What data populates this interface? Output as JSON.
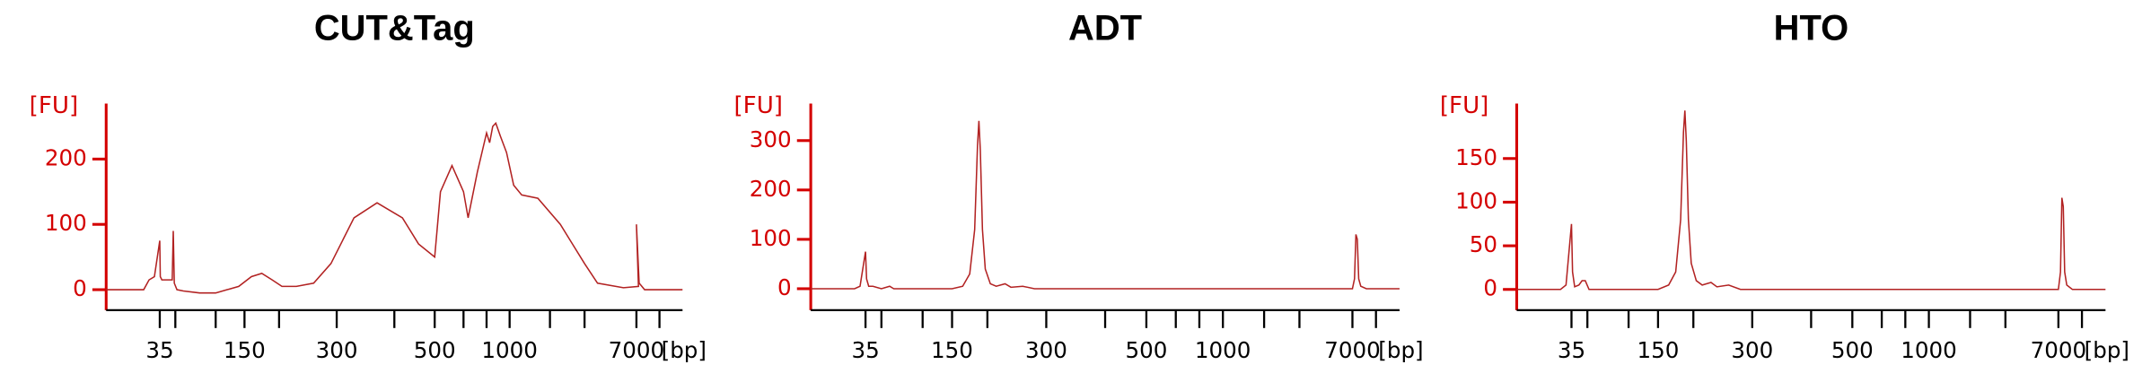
{
  "chart_data": [
    {
      "type": "line",
      "title": "CUT&Tag",
      "y_label": "[FU]",
      "x_label": "[bp]",
      "color": "#b22222",
      "axis_color": "#d40000",
      "xlim": [
        25,
        12000
      ],
      "xticks": [
        35,
        50,
        100,
        150,
        200,
        300,
        400,
        500,
        600,
        700,
        1000,
        2000,
        3000,
        7000,
        10380
      ],
      "xtick_labels": [
        "35",
        null,
        null,
        "150",
        null,
        "300",
        null,
        "500",
        null,
        null,
        "1000",
        null,
        null,
        "7000",
        null
      ],
      "ylim": [
        -25,
        285
      ],
      "yticks": [
        0,
        100,
        200
      ],
      "x": [
        25,
        32,
        33,
        34,
        35,
        35.5,
        37,
        47,
        48,
        49,
        52,
        60,
        80,
        100,
        120,
        140,
        160,
        175,
        190,
        205,
        230,
        260,
        290,
        330,
        370,
        420,
        460,
        500,
        520,
        560,
        600,
        620,
        660,
        700,
        740,
        780,
        820,
        880,
        960,
        1100,
        1300,
        1700,
        2300,
        3000,
        4000,
        6000,
        7300,
        7000,
        7400,
        8200,
        9000,
        12000
      ],
      "values": [
        0,
        0,
        15,
        20,
        75,
        20,
        15,
        15,
        90,
        10,
        0,
        -2,
        -5,
        -5,
        0,
        5,
        20,
        25,
        15,
        5,
        5,
        10,
        40,
        110,
        133,
        110,
        70,
        50,
        150,
        190,
        150,
        110,
        180,
        240,
        225,
        250,
        255,
        235,
        210,
        160,
        145,
        140,
        100,
        40,
        10,
        3,
        5,
        100,
        10,
        0,
        0,
        0
      ]
    },
    {
      "type": "line",
      "title": "ADT",
      "y_label": "[FU]",
      "x_label": "[bp]",
      "color": "#b22222",
      "axis_color": "#d40000",
      "xlim": [
        25,
        12000
      ],
      "xticks": [
        35,
        50,
        100,
        150,
        200,
        300,
        400,
        500,
        600,
        700,
        1000,
        2000,
        3000,
        7000,
        10380
      ],
      "xtick_labels": [
        "35",
        null,
        null,
        "150",
        null,
        "300",
        null,
        "500",
        null,
        null,
        "1000",
        null,
        null,
        "7000",
        null
      ],
      "ylim": [
        -35,
        375
      ],
      "yticks": [
        0,
        100,
        200,
        300
      ],
      "x": [
        25,
        33,
        34,
        35,
        36,
        38,
        42,
        50,
        60,
        65,
        150,
        165,
        175,
        182,
        186,
        188,
        190,
        193,
        197,
        205,
        215,
        230,
        240,
        260,
        280,
        7000,
        7300,
        7500,
        7700,
        7900,
        8200,
        9000,
        12000
      ],
      "values": [
        0,
        0,
        5,
        75,
        20,
        5,
        5,
        0,
        5,
        0,
        0,
        5,
        30,
        120,
        290,
        340,
        280,
        120,
        40,
        10,
        5,
        10,
        3,
        5,
        0,
        0,
        20,
        110,
        100,
        20,
        5,
        0,
        0
      ]
    },
    {
      "type": "line",
      "title": "HTO",
      "y_label": "[FU]",
      "x_label": "[bp]",
      "color": "#b22222",
      "axis_color": "#d40000",
      "xlim": [
        25,
        12000
      ],
      "xticks": [
        35,
        50,
        100,
        150,
        200,
        300,
        400,
        500,
        600,
        700,
        1000,
        2000,
        3000,
        7000,
        10380
      ],
      "xtick_labels": [
        "35",
        null,
        null,
        "150",
        null,
        "300",
        null,
        "500",
        null,
        null,
        "1000",
        null,
        null,
        "7000",
        null
      ],
      "ylim": [
        -19,
        213
      ],
      "yticks": [
        0,
        50,
        100,
        150
      ],
      "x": [
        25,
        33,
        34,
        35,
        36,
        38,
        42,
        45,
        48,
        52,
        150,
        165,
        175,
        182,
        186,
        188,
        190,
        193,
        197,
        205,
        215,
        230,
        240,
        260,
        280,
        7000,
        7300,
        7500,
        7700,
        7900,
        8200,
        9000,
        12000
      ],
      "values": [
        0,
        0,
        5,
        75,
        20,
        3,
        5,
        10,
        10,
        0,
        0,
        5,
        20,
        80,
        180,
        205,
        170,
        80,
        30,
        10,
        5,
        8,
        3,
        5,
        0,
        0,
        20,
        105,
        95,
        20,
        5,
        0,
        0
      ]
    }
  ]
}
